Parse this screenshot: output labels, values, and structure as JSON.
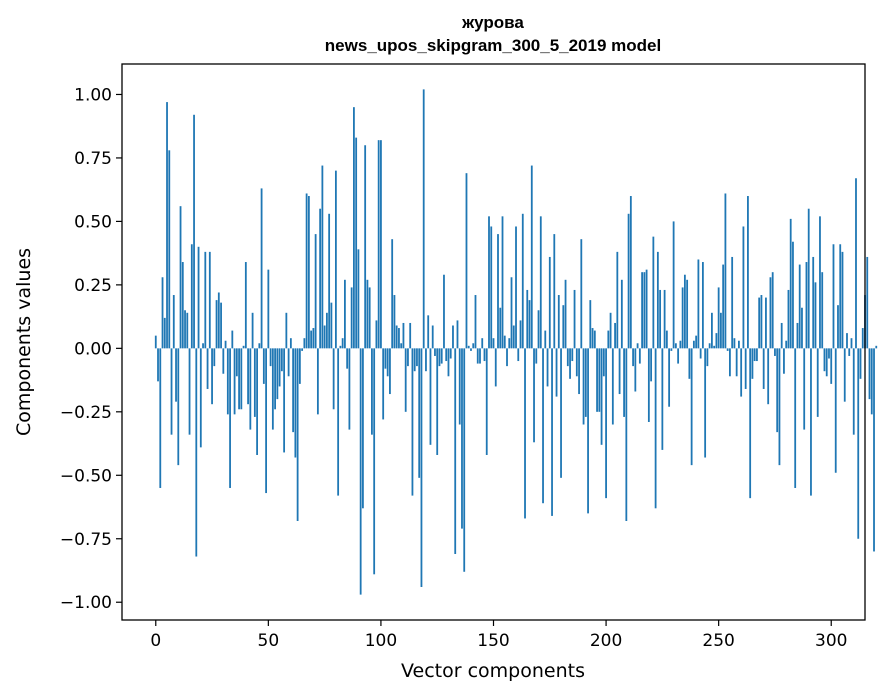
{
  "chart_data": {
    "type": "bar",
    "title_line1": "журова",
    "title_line2": "news_upos_skipgram_300_5_2019 model",
    "xlabel": "Vector components",
    "ylabel": "Components values",
    "xlim": [
      -15,
      315
    ],
    "ylim": [
      -1.07,
      1.12
    ],
    "xticks": [
      0,
      50,
      100,
      150,
      200,
      250,
      300
    ],
    "xtick_labels": [
      "0",
      "50",
      "100",
      "150",
      "200",
      "250",
      "300"
    ],
    "yticks": [
      1.0,
      0.75,
      0.5,
      0.25,
      0.0,
      -0.25,
      -0.5,
      -0.75,
      -1.0
    ],
    "ytick_labels": [
      "1.00",
      "0.75",
      "0.50",
      "0.25",
      "0.00",
      "−0.25",
      "−0.50",
      "−0.75",
      "−1.00"
    ],
    "bar_color": "#1f77b4",
    "x_start": 0,
    "values": [
      0.05,
      -0.13,
      -0.55,
      0.28,
      0.12,
      0.97,
      0.78,
      -0.34,
      0.21,
      -0.21,
      -0.46,
      0.56,
      0.34,
      0.15,
      0.14,
      -0.34,
      0.41,
      0.92,
      -0.82,
      0.4,
      -0.39,
      0.02,
      0.38,
      -0.16,
      0.38,
      -0.22,
      -0.07,
      0.19,
      0.22,
      0.18,
      -0.1,
      0.03,
      -0.26,
      -0.55,
      0.07,
      -0.26,
      -0.11,
      -0.24,
      -0.24,
      0.01,
      0.34,
      -0.22,
      -0.32,
      0.14,
      -0.27,
      -0.42,
      0.02,
      0.63,
      -0.14,
      -0.57,
      0.31,
      -0.07,
      -0.32,
      -0.24,
      -0.2,
      -0.15,
      -0.09,
      -0.41,
      0.14,
      -0.11,
      0.04,
      -0.33,
      -0.43,
      -0.68,
      -0.14,
      -0.01,
      0.04,
      0.61,
      0.6,
      0.07,
      0.08,
      0.45,
      -0.26,
      0.55,
      0.72,
      0.09,
      0.14,
      0.53,
      0.18,
      -0.24,
      0.7,
      -0.58,
      0.01,
      0.04,
      0.27,
      -0.08,
      -0.32,
      0.24,
      0.95,
      0.83,
      0.39,
      -0.97,
      -0.63,
      0.8,
      0.27,
      0.24,
      -0.34,
      -0.89,
      0.11,
      0.82,
      0.82,
      -0.28,
      -0.08,
      -0.11,
      -0.18,
      0.43,
      0.21,
      0.09,
      0.08,
      0.02,
      0.1,
      -0.25,
      -0.07,
      0.1,
      -0.58,
      -0.09,
      -0.07,
      -0.51,
      -0.94,
      1.02,
      -0.09,
      0.13,
      -0.38,
      0.09,
      -0.03,
      -0.42,
      -0.07,
      -0.06,
      0.29,
      -0.05,
      -0.11,
      -0.04,
      0.09,
      -0.81,
      0.11,
      -0.3,
      -0.71,
      -0.88,
      0.69,
      0.01,
      -0.01,
      0.02,
      0.21,
      -0.06,
      -0.06,
      0.04,
      -0.05,
      -0.42,
      0.52,
      0.48,
      0.04,
      -0.15,
      0.45,
      0.16,
      0.52,
      0.05,
      -0.07,
      0.04,
      0.28,
      0.09,
      0.48,
      -0.05,
      0.11,
      0.53,
      -0.67,
      0.23,
      0.19,
      0.72,
      -0.37,
      -0.06,
      0.15,
      0.52,
      -0.61,
      0.07,
      -0.15,
      0.36,
      -0.66,
      0.45,
      -0.19,
      0.21,
      -0.51,
      0.17,
      0.27,
      -0.07,
      -0.12,
      -0.05,
      0.23,
      -0.11,
      -0.18,
      0.43,
      -0.3,
      -0.27,
      -0.65,
      0.19,
      0.08,
      0.07,
      -0.25,
      -0.25,
      -0.38,
      -0.11,
      -0.59,
      0.07,
      0.14,
      -0.3,
      0.1,
      0.38,
      -0.18,
      0.27,
      -0.27,
      -0.68,
      0.53,
      0.6,
      -0.07,
      -0.17,
      0.02,
      -0.06,
      0.3,
      0.3,
      0.31,
      -0.29,
      -0.13,
      0.44,
      -0.63,
      0.38,
      0.23,
      -0.4,
      0.23,
      0.07,
      -0.23,
      -0.01,
      0.5,
      0.02,
      -0.06,
      0.03,
      0.24,
      0.29,
      0.27,
      -0.12,
      -0.46,
      0.03,
      0.05,
      0.35,
      -0.04,
      0.34,
      -0.43,
      -0.07,
      0.02,
      0.14,
      0.01,
      0.06,
      0.24,
      0.14,
      0.33,
      0.61,
      -0.01,
      -0.11,
      0.36,
      0.04,
      -0.11,
      0.03,
      -0.19,
      0.48,
      -0.16,
      0.6,
      -0.59,
      -0.12,
      -0.05,
      -0.05,
      0.2,
      0.21,
      -0.16,
      0.2,
      -0.22,
      0.28,
      0.3,
      -0.03,
      -0.33,
      -0.46,
      0.1,
      -0.1,
      0.03,
      0.23,
      0.51,
      0.42,
      -0.55,
      0.1,
      0.33,
      0.16,
      -0.32,
      0.34,
      0.55,
      -0.58,
      0.36,
      0.26,
      -0.27,
      0.52,
      0.3,
      -0.09,
      -0.11,
      -0.04,
      -0.14,
      0.41,
      -0.49,
      0.17,
      0.41,
      0.38,
      -0.21,
      0.06,
      -0.03,
      0.04,
      -0.34,
      0.67,
      -0.75,
      -0.12,
      0.08,
      0.21,
      0.36,
      -0.2,
      -0.26,
      -0.8,
      0.01
    ]
  }
}
